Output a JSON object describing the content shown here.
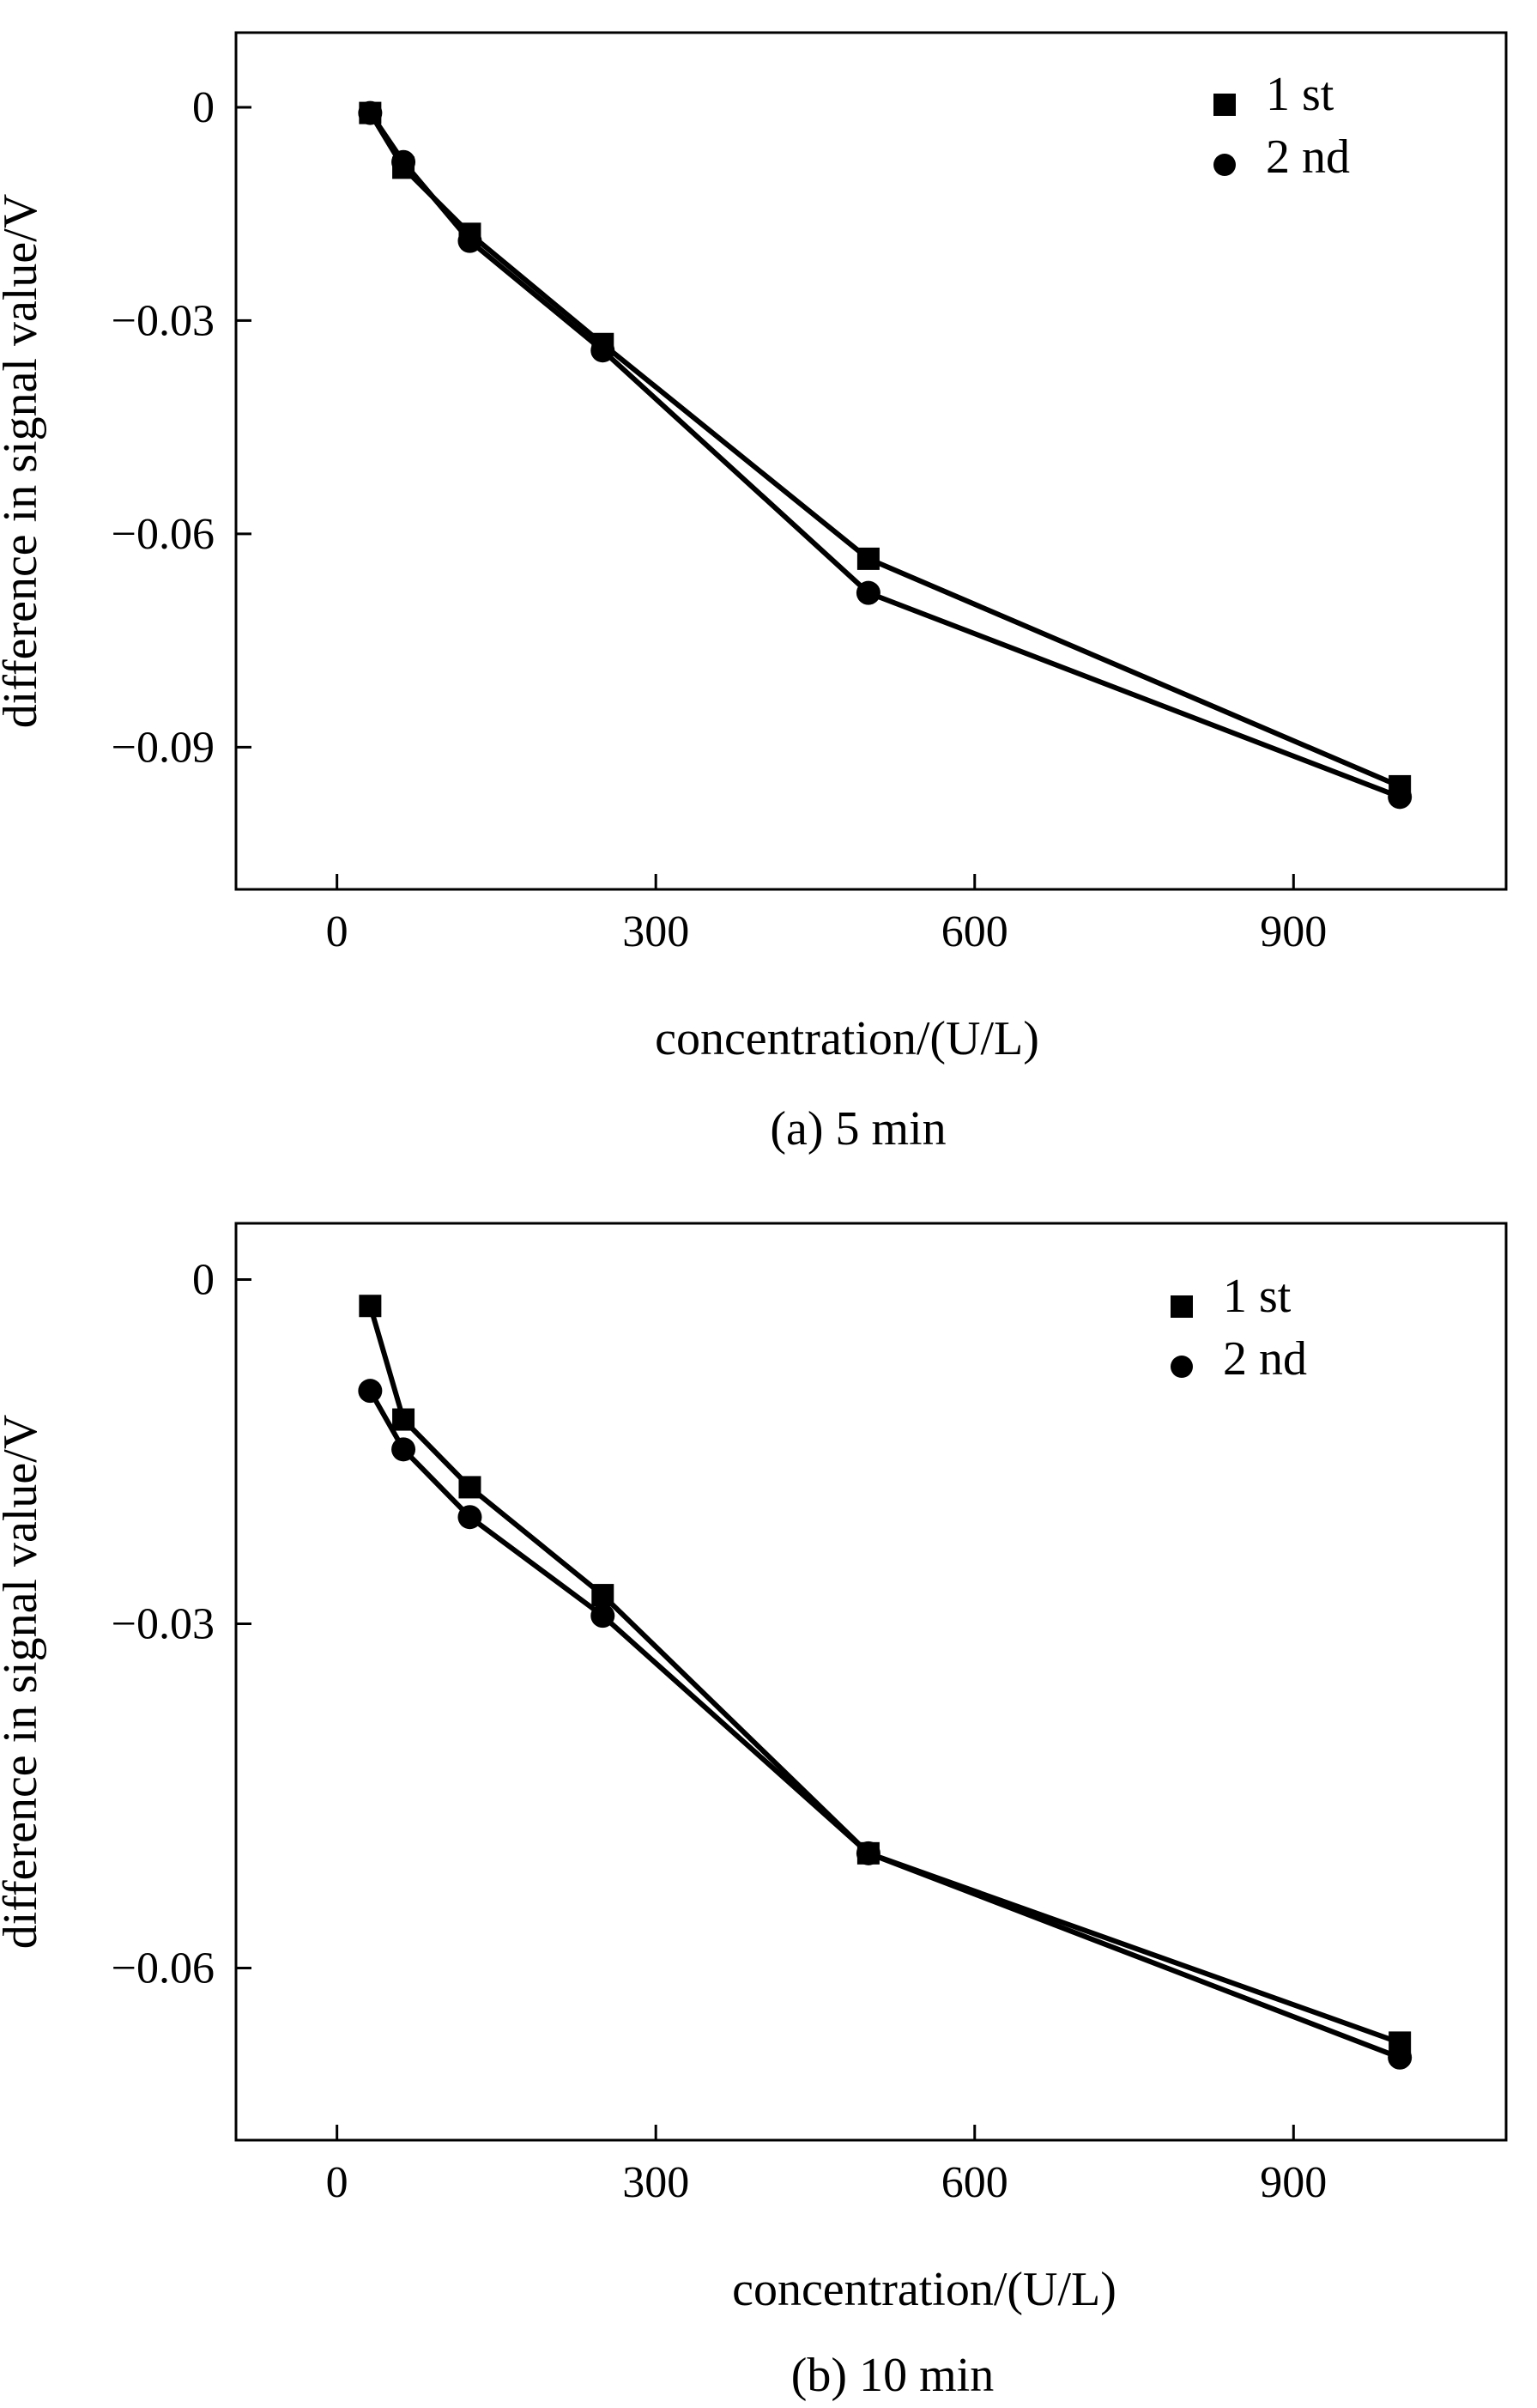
{
  "chart_data": [
    {
      "type": "line",
      "title": "",
      "caption": "(a) 5 min",
      "xlabel": "concentration/(U/L)",
      "ylabel": "difference in signal value/V",
      "xlim": [
        -95,
        1100
      ],
      "ylim": [
        -0.11,
        0.0105
      ],
      "xticks": [
        0,
        300,
        600,
        900
      ],
      "xtick_labels": [
        "0",
        "300",
        "600",
        "900"
      ],
      "yticks": [
        0,
        -0.03,
        -0.06,
        -0.09
      ],
      "ytick_labels": [
        "0",
        "−0.03",
        "−0.06",
        "−0.09"
      ],
      "grid": false,
      "legend_position": "top-right",
      "series": [
        {
          "name": "1 st",
          "marker": "square",
          "x": [
            31.25,
            62.5,
            125,
            250,
            500,
            1000
          ],
          "y": [
            -0.0008,
            -0.0085,
            -0.0178,
            -0.0333,
            -0.0635,
            -0.0955
          ]
        },
        {
          "name": "2 nd",
          "marker": "circle",
          "x": [
            31.25,
            62.5,
            125,
            250,
            500,
            1000
          ],
          "y": [
            -0.0008,
            -0.0077,
            -0.0188,
            -0.0342,
            -0.0683,
            -0.097
          ]
        }
      ]
    },
    {
      "type": "line",
      "title": "",
      "caption": "(b) 10 min",
      "xlabel": "concentration/(U/L)",
      "ylabel": "difference in signal value/V",
      "xlim": [
        -95,
        1100
      ],
      "ylim": [
        -0.075,
        0.0049
      ],
      "xticks": [
        0,
        300,
        600,
        900
      ],
      "xtick_labels": [
        "0",
        "300",
        "600",
        "900"
      ],
      "yticks": [
        0,
        -0.03,
        -0.06
      ],
      "ytick_labels": [
        "0",
        "−0.03",
        "−0.06"
      ],
      "grid": false,
      "legend_position": "top-right",
      "series": [
        {
          "name": "1 st",
          "marker": "square",
          "x": [
            31.25,
            62.5,
            125,
            250,
            500,
            1000
          ],
          "y": [
            -0.0023,
            -0.0122,
            -0.0181,
            -0.0275,
            -0.05,
            -0.0665
          ]
        },
        {
          "name": "2 nd",
          "marker": "circle",
          "x": [
            31.25,
            62.5,
            125,
            250,
            500,
            1000
          ],
          "y": [
            -0.0097,
            -0.0148,
            -0.0207,
            -0.0293,
            -0.05,
            -0.0678
          ]
        }
      ]
    }
  ]
}
